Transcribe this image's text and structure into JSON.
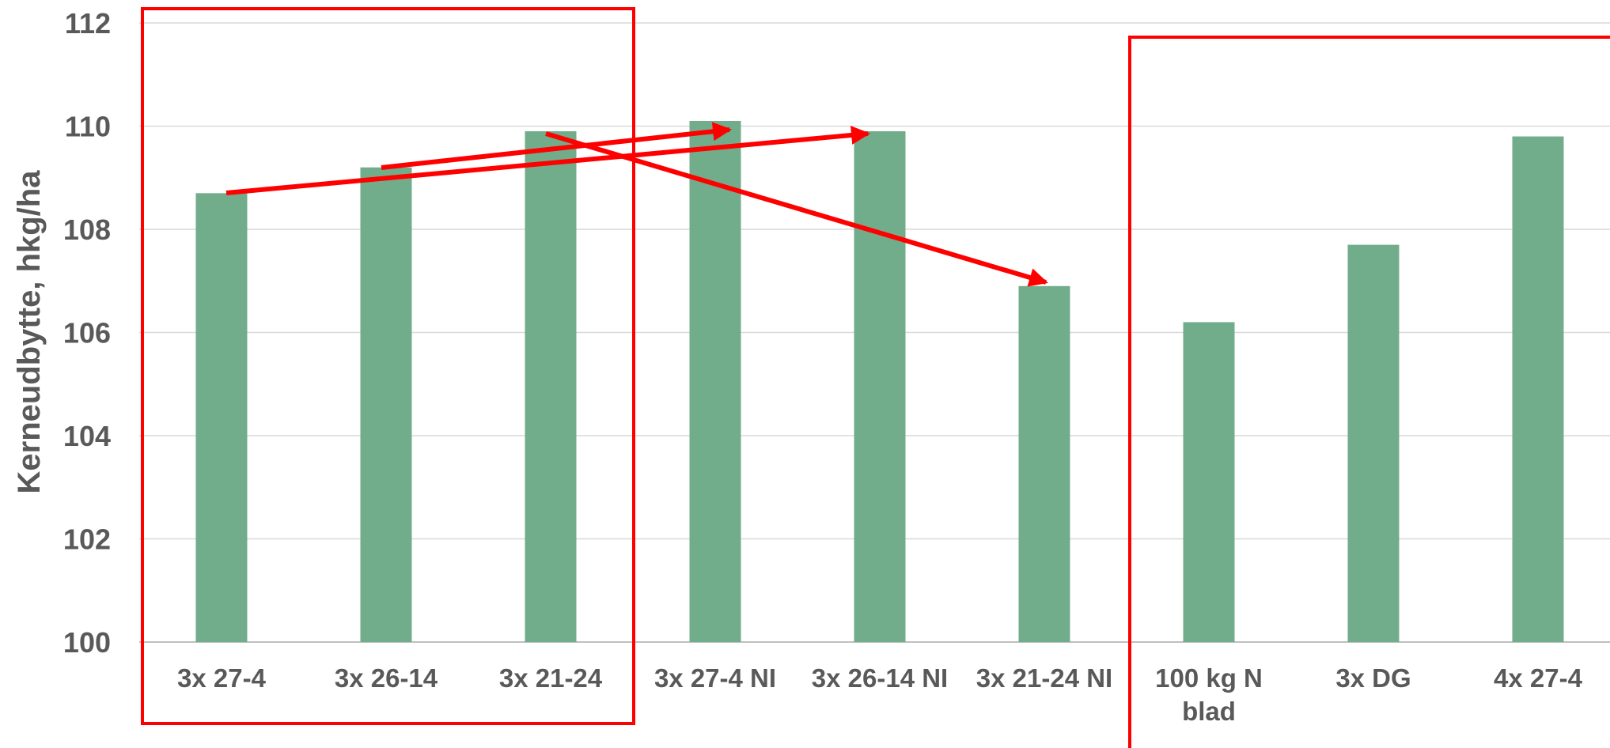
{
  "chart_data": {
    "type": "bar",
    "title": "",
    "xlabel": "",
    "ylabel": "Kerneudbytte, hkg/ha",
    "ylim": [
      100,
      112
    ],
    "yticks": [
      100,
      102,
      104,
      106,
      108,
      110,
      112
    ],
    "grid": true,
    "categories": [
      [
        "3x 27-4"
      ],
      [
        "3x 26-14"
      ],
      [
        "3x 21-24"
      ],
      [
        "3x 27-4 NI"
      ],
      [
        "3x 26-14 NI"
      ],
      [
        "3x 21-24 NI"
      ],
      [
        "100 kg N",
        "blad"
      ],
      [
        "3x DG"
      ],
      [
        "4x 27-4"
      ]
    ],
    "values": [
      108.7,
      109.2,
      109.9,
      110.1,
      109.9,
      106.9,
      106.2,
      107.7,
      109.8
    ],
    "bar_color": "#71ad8a",
    "annotations": {
      "highlight_boxes": [
        {
          "categories": [
            0,
            2
          ]
        },
        {
          "categories": [
            6,
            8
          ]
        }
      ],
      "arrows": [
        {
          "from": 0,
          "to": 4
        },
        {
          "from": 1,
          "to": 3
        },
        {
          "from": 2,
          "to": 5
        }
      ],
      "annotation_color": "#ff0000"
    }
  }
}
